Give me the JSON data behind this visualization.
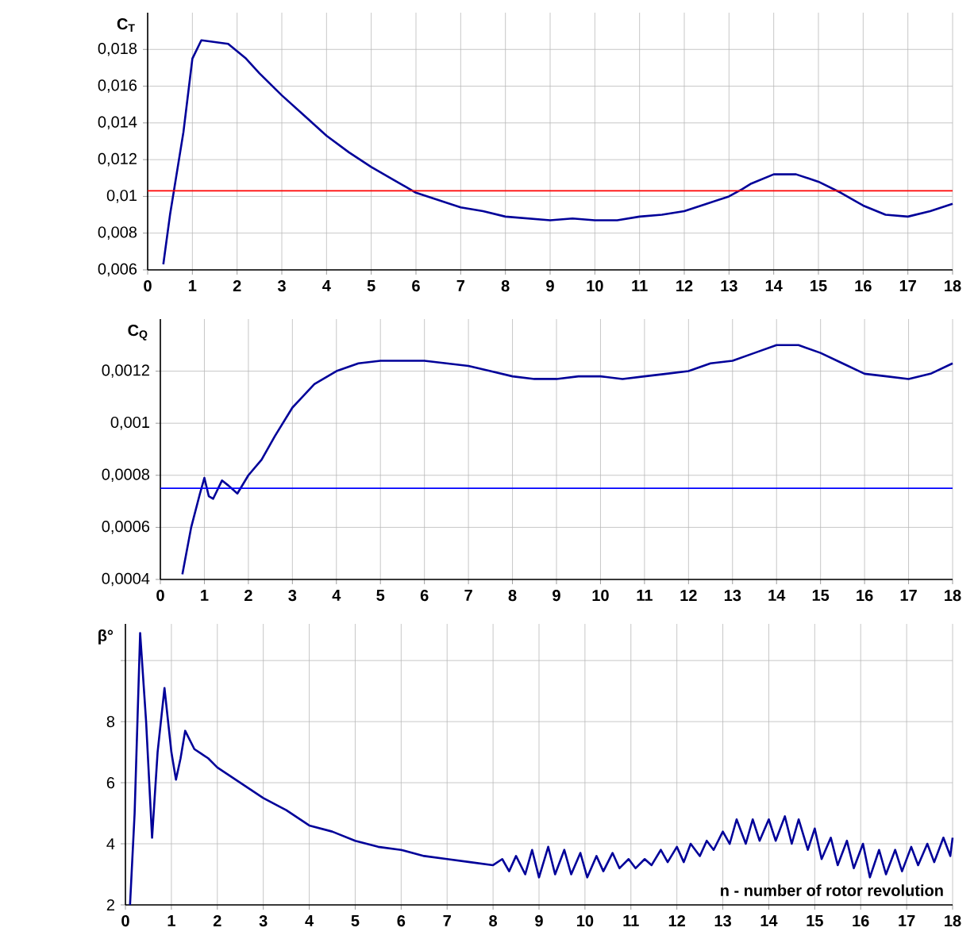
{
  "chart_data": [
    {
      "type": "line",
      "ylabel": "C$_{T}$",
      "xlim": [
        0,
        18
      ],
      "xticks": [
        0,
        1,
        2,
        3,
        4,
        5,
        6,
        7,
        8,
        9,
        10,
        11,
        12,
        13,
        14,
        15,
        16,
        17,
        18
      ],
      "ylim": [
        0.006,
        0.02
      ],
      "yticks": [
        {
          "value": 0.006,
          "label": "0,006"
        },
        {
          "value": 0.008,
          "label": "0,008"
        },
        {
          "value": 0.01,
          "label": "0,01"
        },
        {
          "value": 0.012,
          "label": "0,012"
        },
        {
          "value": 0.014,
          "label": "0,014"
        },
        {
          "value": 0.016,
          "label": "0,016"
        },
        {
          "value": 0.018,
          "label": "0,018"
        }
      ],
      "grid": true,
      "line_style": "solid",
      "series": [
        {
          "color": "#000099",
          "x": [
            0.35,
            0.5,
            0.6,
            0.8,
            1.0,
            1.2,
            1.5,
            1.8,
            2.2,
            2.5,
            3,
            3.5,
            4,
            4.5,
            5,
            5.5,
            6,
            6.5,
            7,
            7.5,
            8,
            8.5,
            9,
            9.5,
            10,
            10.5,
            11,
            11.5,
            12,
            12.5,
            13,
            13.3,
            13.5,
            14,
            14.5,
            15,
            15.5,
            16,
            16.5,
            17,
            17.5,
            18
          ],
          "values": [
            0.0063,
            0.009,
            0.0105,
            0.0135,
            0.0175,
            0.0185,
            0.0184,
            0.0183,
            0.0175,
            0.0167,
            0.0155,
            0.0144,
            0.0133,
            0.0124,
            0.0116,
            0.0109,
            0.0102,
            0.0098,
            0.0094,
            0.0092,
            0.0089,
            0.0088,
            0.0087,
            0.0088,
            0.0087,
            0.0087,
            0.0089,
            0.009,
            0.0092,
            0.0096,
            0.01,
            0.0104,
            0.0107,
            0.0112,
            0.0112,
            0.0108,
            0.0102,
            0.0095,
            0.009,
            0.0089,
            0.0092,
            0.0096
          ]
        }
      ],
      "ref_lines": [
        {
          "axis": "y",
          "value": 0.0103,
          "color": "#ff0000"
        }
      ]
    },
    {
      "type": "line",
      "ylabel": "C$_{Q}$",
      "xlim": [
        0,
        18
      ],
      "xticks": [
        0,
        1,
        2,
        3,
        4,
        5,
        6,
        7,
        8,
        9,
        10,
        11,
        12,
        13,
        14,
        15,
        16,
        17,
        18
      ],
      "ylim": [
        0.0004,
        0.0014
      ],
      "yticks": [
        {
          "value": 0.0004,
          "label": "0,0004"
        },
        {
          "value": 0.0006,
          "label": "0,0006"
        },
        {
          "value": 0.0008,
          "label": "0,0008"
        },
        {
          "value": 0.001,
          "label": "0,001"
        },
        {
          "value": 0.0012,
          "label": "0,0012"
        }
      ],
      "grid": true,
      "line_style": "solid",
      "series": [
        {
          "color": "#000099",
          "x": [
            0.5,
            0.7,
            0.9,
            1.0,
            1.1,
            1.2,
            1.4,
            1.55,
            1.75,
            2,
            2.3,
            2.6,
            3,
            3.5,
            4,
            4.5,
            5,
            5.5,
            6,
            6.5,
            7,
            7.5,
            8,
            8.5,
            9,
            9.5,
            10,
            10.5,
            11,
            11.5,
            12,
            12.5,
            13,
            13.5,
            14,
            14.5,
            15,
            15.5,
            16,
            16.5,
            17,
            17.5,
            18
          ],
          "values": [
            0.00042,
            0.0006,
            0.00073,
            0.00079,
            0.00072,
            0.00071,
            0.00078,
            0.00076,
            0.00073,
            0.0008,
            0.00086,
            0.00095,
            0.00106,
            0.00115,
            0.0012,
            0.00123,
            0.00124,
            0.00124,
            0.00124,
            0.00123,
            0.00122,
            0.0012,
            0.00118,
            0.00117,
            0.00117,
            0.00118,
            0.00118,
            0.00117,
            0.00118,
            0.00119,
            0.0012,
            0.00123,
            0.00124,
            0.00127,
            0.0013,
            0.0013,
            0.00127,
            0.00123,
            0.00119,
            0.00118,
            0.00117,
            0.00119,
            0.00123
          ]
        }
      ],
      "ref_lines": [
        {
          "axis": "y",
          "value": 0.00075,
          "color": "#0000ff"
        }
      ]
    },
    {
      "type": "line",
      "ylabel": "β°",
      "xlabel": "n - number of rotor revolution",
      "xlim": [
        0,
        18
      ],
      "xticks": [
        0,
        1,
        2,
        3,
        4,
        5,
        6,
        7,
        8,
        9,
        10,
        11,
        12,
        13,
        14,
        15,
        16,
        17,
        18
      ],
      "ylim": [
        2,
        11.2
      ],
      "yticks": [
        2,
        4,
        6,
        8,
        {
          "value": 10,
          "label": null
        }
      ],
      "grid": true,
      "line_style": "solid",
      "series": [
        {
          "color": "#000099",
          "x": [
            0.1,
            0.2,
            0.32,
            0.45,
            0.58,
            0.7,
            0.85,
            1.0,
            1.1,
            1.2,
            1.3,
            1.5,
            1.8,
            2,
            2.5,
            3,
            3.5,
            4,
            4.5,
            5,
            5.5,
            6,
            6.5,
            7,
            7.5,
            8,
            8.2,
            8.35,
            8.5,
            8.7,
            8.85,
            9.0,
            9.2,
            9.35,
            9.55,
            9.7,
            9.9,
            10.05,
            10.25,
            10.4,
            10.6,
            10.75,
            10.95,
            11.1,
            11.3,
            11.45,
            11.65,
            11.8,
            12.0,
            12.15,
            12.3,
            12.5,
            12.65,
            12.8,
            13.0,
            13.15,
            13.3,
            13.5,
            13.65,
            13.8,
            14.0,
            14.15,
            14.35,
            14.5,
            14.65,
            14.85,
            15.0,
            15.15,
            15.35,
            15.5,
            15.7,
            15.85,
            16.05,
            16.2,
            16.4,
            16.55,
            16.75,
            16.9,
            17.1,
            17.25,
            17.45,
            17.6,
            17.8,
            17.95,
            18
          ],
          "values": [
            2.0,
            5,
            10.9,
            8,
            4.2,
            7,
            9.1,
            7,
            6.1,
            6.8,
            7.7,
            7.1,
            6.8,
            6.5,
            6.0,
            5.5,
            5.1,
            4.6,
            4.4,
            4.1,
            3.9,
            3.8,
            3.6,
            3.5,
            3.4,
            3.3,
            3.5,
            3.1,
            3.6,
            3.0,
            3.8,
            2.9,
            3.9,
            3.0,
            3.8,
            3.0,
            3.7,
            2.9,
            3.6,
            3.1,
            3.7,
            3.2,
            3.5,
            3.2,
            3.5,
            3.3,
            3.8,
            3.4,
            3.9,
            3.4,
            4.0,
            3.6,
            4.1,
            3.8,
            4.4,
            4.0,
            4.8,
            4.0,
            4.8,
            4.1,
            4.8,
            4.1,
            4.9,
            4.0,
            4.8,
            3.8,
            4.5,
            3.5,
            4.2,
            3.3,
            4.1,
            3.2,
            4.0,
            2.9,
            3.8,
            3.0,
            3.8,
            3.1,
            3.9,
            3.3,
            4.0,
            3.4,
            4.2,
            3.6,
            4.2
          ]
        }
      ]
    }
  ]
}
